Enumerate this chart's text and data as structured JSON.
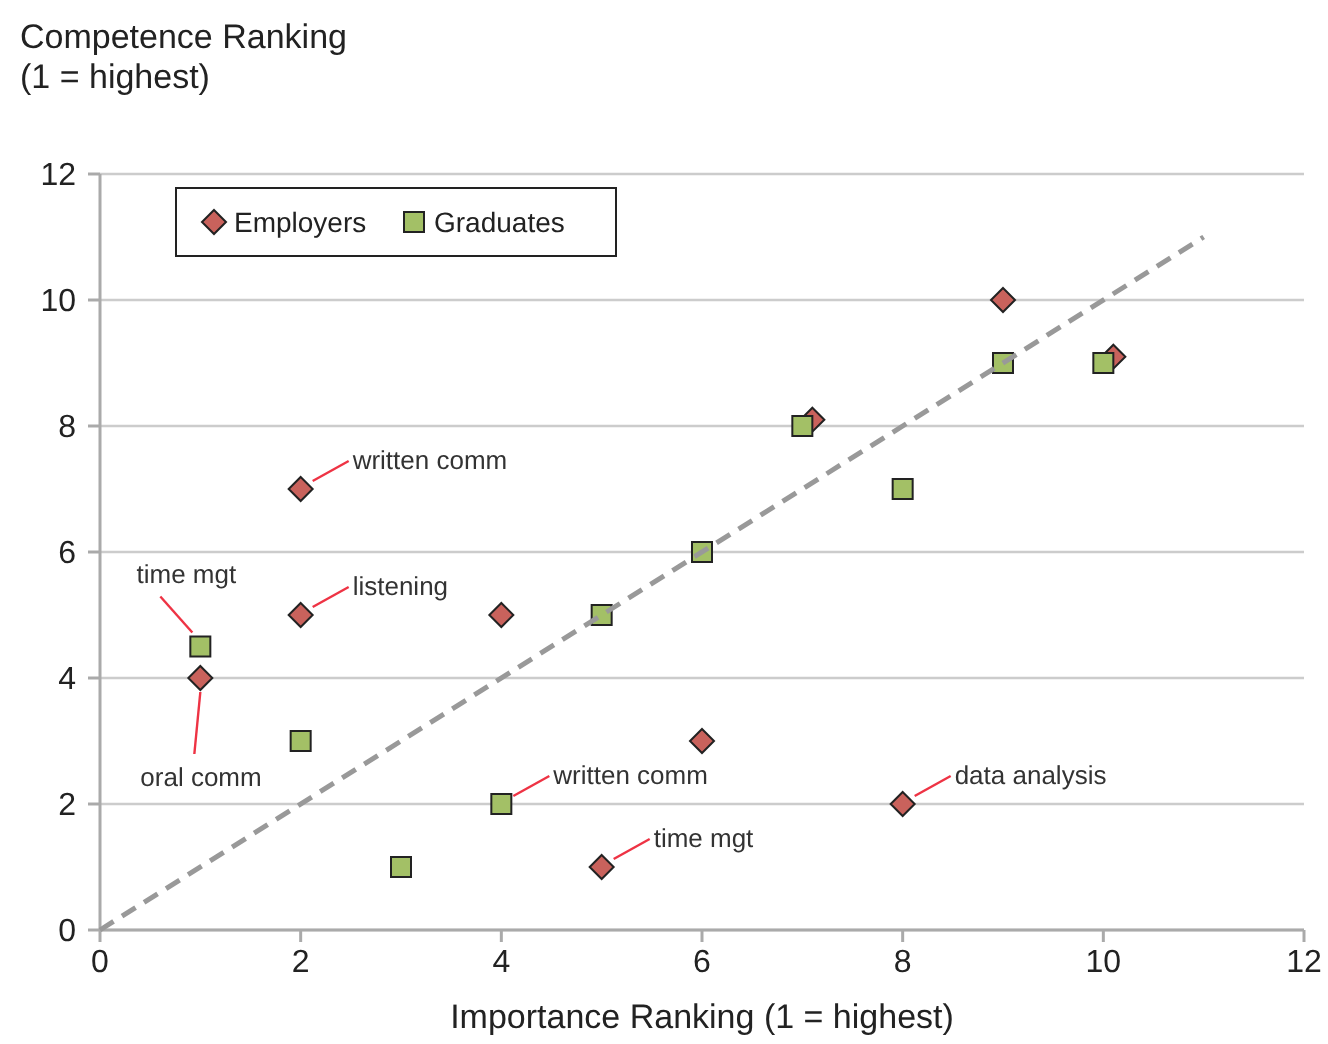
{
  "chart_data": {
    "type": "scatter",
    "xlabel": "Importance Ranking (1 = highest)",
    "ylabel": "Competence Ranking\n(1 = highest)",
    "xlim": [
      0,
      12
    ],
    "ylim": [
      0,
      12
    ],
    "xticks": [
      0,
      2,
      4,
      6,
      8,
      10,
      12
    ],
    "yticks": [
      0,
      2,
      4,
      6,
      8,
      10,
      12
    ],
    "grid": "y",
    "legend": "top left",
    "series": [
      {
        "name": "Employers",
        "color": "#c9625c",
        "marker": "diamond",
        "x": [
          1,
          2,
          2,
          4,
          5,
          6,
          7.1,
          8,
          9,
          10.1
        ],
        "values": [
          4,
          5,
          7,
          5,
          1,
          3,
          8.1,
          2,
          10,
          9.1
        ]
      },
      {
        "name": "Graduates",
        "color": "#a3c066",
        "marker": "square",
        "x": [
          1,
          2,
          3,
          4,
          5,
          6,
          7,
          8,
          9,
          10
        ],
        "values": [
          4.5,
          3,
          1,
          2,
          5,
          6,
          8,
          7,
          9,
          9
        ]
      },
      {
        "type": "line",
        "color": "#999999",
        "line_style": "dashed",
        "marker": "none",
        "x": [
          0,
          11
        ],
        "values": [
          0,
          11
        ]
      }
    ],
    "annotations": [
      {
        "text": "written comm",
        "x": 2,
        "y": 7
      },
      {
        "text": "listening",
        "x": 2,
        "y": 5
      },
      {
        "text": "time mgt",
        "x": 1,
        "y": 4.5
      },
      {
        "text": "oral comm",
        "x": 1,
        "y": 4
      },
      {
        "text": "written comm",
        "x": 4,
        "y": 2
      },
      {
        "text": "time mgt",
        "x": 5,
        "y": 1
      },
      {
        "text": "data analysis",
        "x": 8,
        "y": 2
      }
    ]
  }
}
